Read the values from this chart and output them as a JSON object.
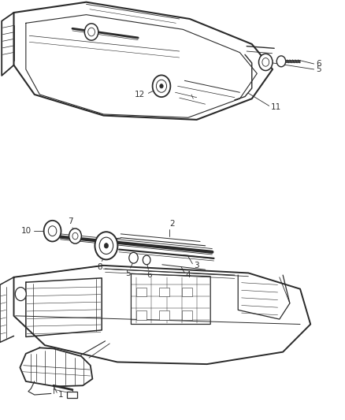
{
  "background_color": "#ffffff",
  "line_color": "#2a2a2a",
  "label_color": "#333333",
  "figsize": [
    4.38,
    5.33
  ],
  "dpi": 100
}
